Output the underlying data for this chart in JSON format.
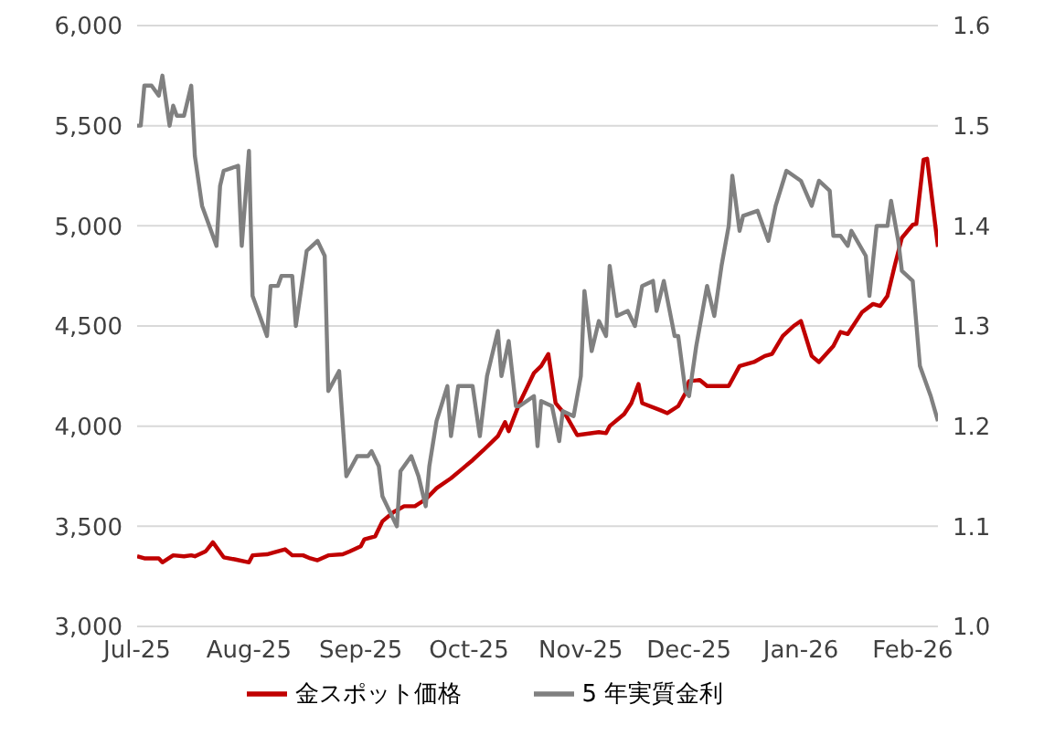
{
  "chart_data": {
    "type": "line",
    "xlim": [
      "2025-07-01",
      "2026-02-08"
    ],
    "xticks": [
      {
        "value": "2025-07-01",
        "label": "Jul-25"
      },
      {
        "value": "2025-08-01",
        "label": "Aug-25"
      },
      {
        "value": "2025-09-01",
        "label": "Sep-25"
      },
      {
        "value": "2025-10-01",
        "label": "Oct-25"
      },
      {
        "value": "2025-11-01",
        "label": "Nov-25"
      },
      {
        "value": "2025-12-01",
        "label": "Dec-25"
      },
      {
        "value": "2026-01-01",
        "label": "Jan-26"
      },
      {
        "value": "2026-02-01",
        "label": "Feb-26"
      }
    ],
    "ylim": [
      3000,
      6000
    ],
    "yticks": [
      {
        "value": 3000,
        "label": "3,000"
      },
      {
        "value": 3500,
        "label": "3,500"
      },
      {
        "value": 4000,
        "label": "4,000"
      },
      {
        "value": 4500,
        "label": "4,500"
      },
      {
        "value": 5000,
        "label": "5,000"
      },
      {
        "value": 5500,
        "label": "5,500"
      },
      {
        "value": 6000,
        "label": "6,000"
      }
    ],
    "y2lim": [
      1.0,
      1.6
    ],
    "y2ticks": [
      {
        "value": 1.0,
        "label": "1.0"
      },
      1.1,
      1.2,
      1.3,
      1.4,
      1.5,
      1.6
    ],
    "grid": "y",
    "legend": "bottom",
    "marker": "none",
    "line_style": "solid",
    "series": [
      {
        "name": "金スポット価格",
        "color": "#c00000",
        "x": [
          "2025-07-01",
          "2025-07-03",
          "2025-07-07",
          "2025-07-08",
          "2025-07-11",
          "2025-07-14",
          "2025-07-16",
          "2025-07-17",
          "2025-07-20",
          "2025-07-22",
          "2025-07-25",
          "2025-07-28",
          "2025-08-01",
          "2025-08-02",
          "2025-08-06",
          "2025-08-08",
          "2025-08-11",
          "2025-08-13",
          "2025-08-16",
          "2025-08-18",
          "2025-08-20",
          "2025-08-23",
          "2025-08-27",
          "2025-08-29",
          "2025-09-01",
          "2025-09-02",
          "2025-09-05",
          "2025-09-07",
          "2025-09-10",
          "2025-09-13",
          "2025-09-16",
          "2025-09-19",
          "2025-09-22",
          "2025-09-26",
          "2025-09-29",
          "2025-10-02",
          "2025-10-05",
          "2025-10-09",
          "2025-10-11",
          "2025-10-12",
          "2025-10-15",
          "2025-10-19",
          "2025-10-21",
          "2025-10-23",
          "2025-10-25",
          "2025-10-28",
          "2025-10-31",
          "2025-11-06",
          "2025-11-08",
          "2025-11-09",
          "2025-11-13",
          "2025-11-15",
          "2025-11-17",
          "2025-11-18",
          "2025-11-23",
          "2025-11-25",
          "2025-11-28",
          "2025-11-30",
          "2025-12-01",
          "2025-12-04",
          "2025-12-06",
          "2025-12-12",
          "2025-12-15",
          "2025-12-19",
          "2025-12-22",
          "2025-12-24",
          "2025-12-27",
          "2025-12-30",
          "2026-01-01",
          "2026-01-04",
          "2026-01-06",
          "2026-01-10",
          "2026-01-12",
          "2026-01-14",
          "2026-01-18",
          "2026-01-21",
          "2026-01-23",
          "2026-01-25",
          "2026-01-27",
          "2026-01-29",
          "2026-02-01",
          "2026-02-02",
          "2026-02-04",
          "2026-02-05",
          "2026-02-08"
        ],
        "values": [
          3350,
          3340,
          3340,
          3320,
          3355,
          3350,
          3355,
          3350,
          3375,
          3420,
          3345,
          3335,
          3320,
          3355,
          3360,
          3370,
          3385,
          3355,
          3355,
          3340,
          3330,
          3355,
          3360,
          3375,
          3400,
          3435,
          3450,
          3525,
          3570,
          3600,
          3600,
          3635,
          3690,
          3740,
          3785,
          3830,
          3880,
          3950,
          4020,
          3975,
          4115,
          4265,
          4300,
          4360,
          4115,
          4050,
          3955,
          3970,
          3965,
          4000,
          4060,
          4115,
          4210,
          4115,
          4080,
          4065,
          4100,
          4165,
          4225,
          4230,
          4200,
          4200,
          4300,
          4320,
          4350,
          4360,
          4450,
          4500,
          4525,
          4350,
          4320,
          4400,
          4470,
          4460,
          4570,
          4610,
          4600,
          4650,
          4800,
          4940,
          5005,
          5010,
          5330,
          5335,
          4895
        ]
      },
      {
        "name": "5 年実質金利",
        "color": "#808080",
        "axis": "y2",
        "x": [
          "2025-07-01",
          "2025-07-02",
          "2025-07-03",
          "2025-07-05",
          "2025-07-07",
          "2025-07-08",
          "2025-07-10",
          "2025-07-11",
          "2025-07-12",
          "2025-07-14",
          "2025-07-16",
          "2025-07-17",
          "2025-07-19",
          "2025-07-21",
          "2025-07-23",
          "2025-07-24",
          "2025-07-25",
          "2025-07-29",
          "2025-07-30",
          "2025-08-01",
          "2025-08-02",
          "2025-08-06",
          "2025-08-07",
          "2025-08-09",
          "2025-08-10",
          "2025-08-13",
          "2025-08-14",
          "2025-08-17",
          "2025-08-20",
          "2025-08-22",
          "2025-08-23",
          "2025-08-26",
          "2025-08-28",
          "2025-08-31",
          "2025-09-03",
          "2025-09-04",
          "2025-09-06",
          "2025-09-07",
          "2025-09-11",
          "2025-09-12",
          "2025-09-15",
          "2025-09-17",
          "2025-09-19",
          "2025-09-20",
          "2025-09-22",
          "2025-09-25",
          "2025-09-26",
          "2025-09-28",
          "2025-10-02",
          "2025-10-04",
          "2025-10-06",
          "2025-10-09",
          "2025-10-10",
          "2025-10-12",
          "2025-10-14",
          "2025-10-15",
          "2025-10-19",
          "2025-10-20",
          "2025-10-21",
          "2025-10-24",
          "2025-10-26",
          "2025-10-27",
          "2025-10-30",
          "2025-11-01",
          "2025-11-02",
          "2025-11-04",
          "2025-11-06",
          "2025-11-08",
          "2025-11-09",
          "2025-11-11",
          "2025-11-14",
          "2025-11-16",
          "2025-11-18",
          "2025-11-21",
          "2025-11-22",
          "2025-11-24",
          "2025-11-27",
          "2025-11-28",
          "2025-11-30",
          "2025-12-01",
          "2025-12-03",
          "2025-12-06",
          "2025-12-08",
          "2025-12-10",
          "2025-12-12",
          "2025-12-13",
          "2025-12-15",
          "2025-12-16",
          "2025-12-20",
          "2025-12-23",
          "2025-12-25",
          "2025-12-28",
          "2025-12-30",
          "2026-01-01",
          "2026-01-04",
          "2026-01-06",
          "2026-01-09",
          "2026-01-10",
          "2026-01-12",
          "2026-01-14",
          "2026-01-15",
          "2026-01-19",
          "2026-01-20",
          "2026-01-22",
          "2026-01-25",
          "2026-01-26",
          "2026-01-28",
          "2026-01-29",
          "2026-02-01",
          "2026-02-03",
          "2026-02-06",
          "2026-02-08"
        ],
        "values": [
          1.5,
          1.5,
          1.54,
          1.54,
          1.53,
          1.55,
          1.5,
          1.52,
          1.51,
          1.51,
          1.54,
          1.47,
          1.42,
          1.4,
          1.38,
          1.44,
          1.455,
          1.46,
          1.38,
          1.475,
          1.33,
          1.29,
          1.34,
          1.34,
          1.35,
          1.35,
          1.3,
          1.375,
          1.385,
          1.37,
          1.235,
          1.255,
          1.15,
          1.17,
          1.17,
          1.175,
          1.16,
          1.13,
          1.1,
          1.155,
          1.17,
          1.15,
          1.12,
          1.16,
          1.205,
          1.24,
          1.19,
          1.24,
          1.24,
          1.19,
          1.25,
          1.295,
          1.25,
          1.285,
          1.22,
          1.22,
          1.23,
          1.18,
          1.225,
          1.22,
          1.185,
          1.215,
          1.21,
          1.25,
          1.335,
          1.275,
          1.305,
          1.29,
          1.36,
          1.31,
          1.315,
          1.3,
          1.34,
          1.345,
          1.315,
          1.345,
          1.29,
          1.29,
          1.235,
          1.23,
          1.28,
          1.34,
          1.31,
          1.36,
          1.4,
          1.45,
          1.395,
          1.41,
          1.415,
          1.385,
          1.42,
          1.455,
          1.45,
          1.445,
          1.42,
          1.445,
          1.435,
          1.39,
          1.39,
          1.38,
          1.395,
          1.37,
          1.33,
          1.4,
          1.4,
          1.425,
          1.385,
          1.355,
          1.345,
          1.26,
          1.23,
          1.205
        ]
      }
    ]
  }
}
